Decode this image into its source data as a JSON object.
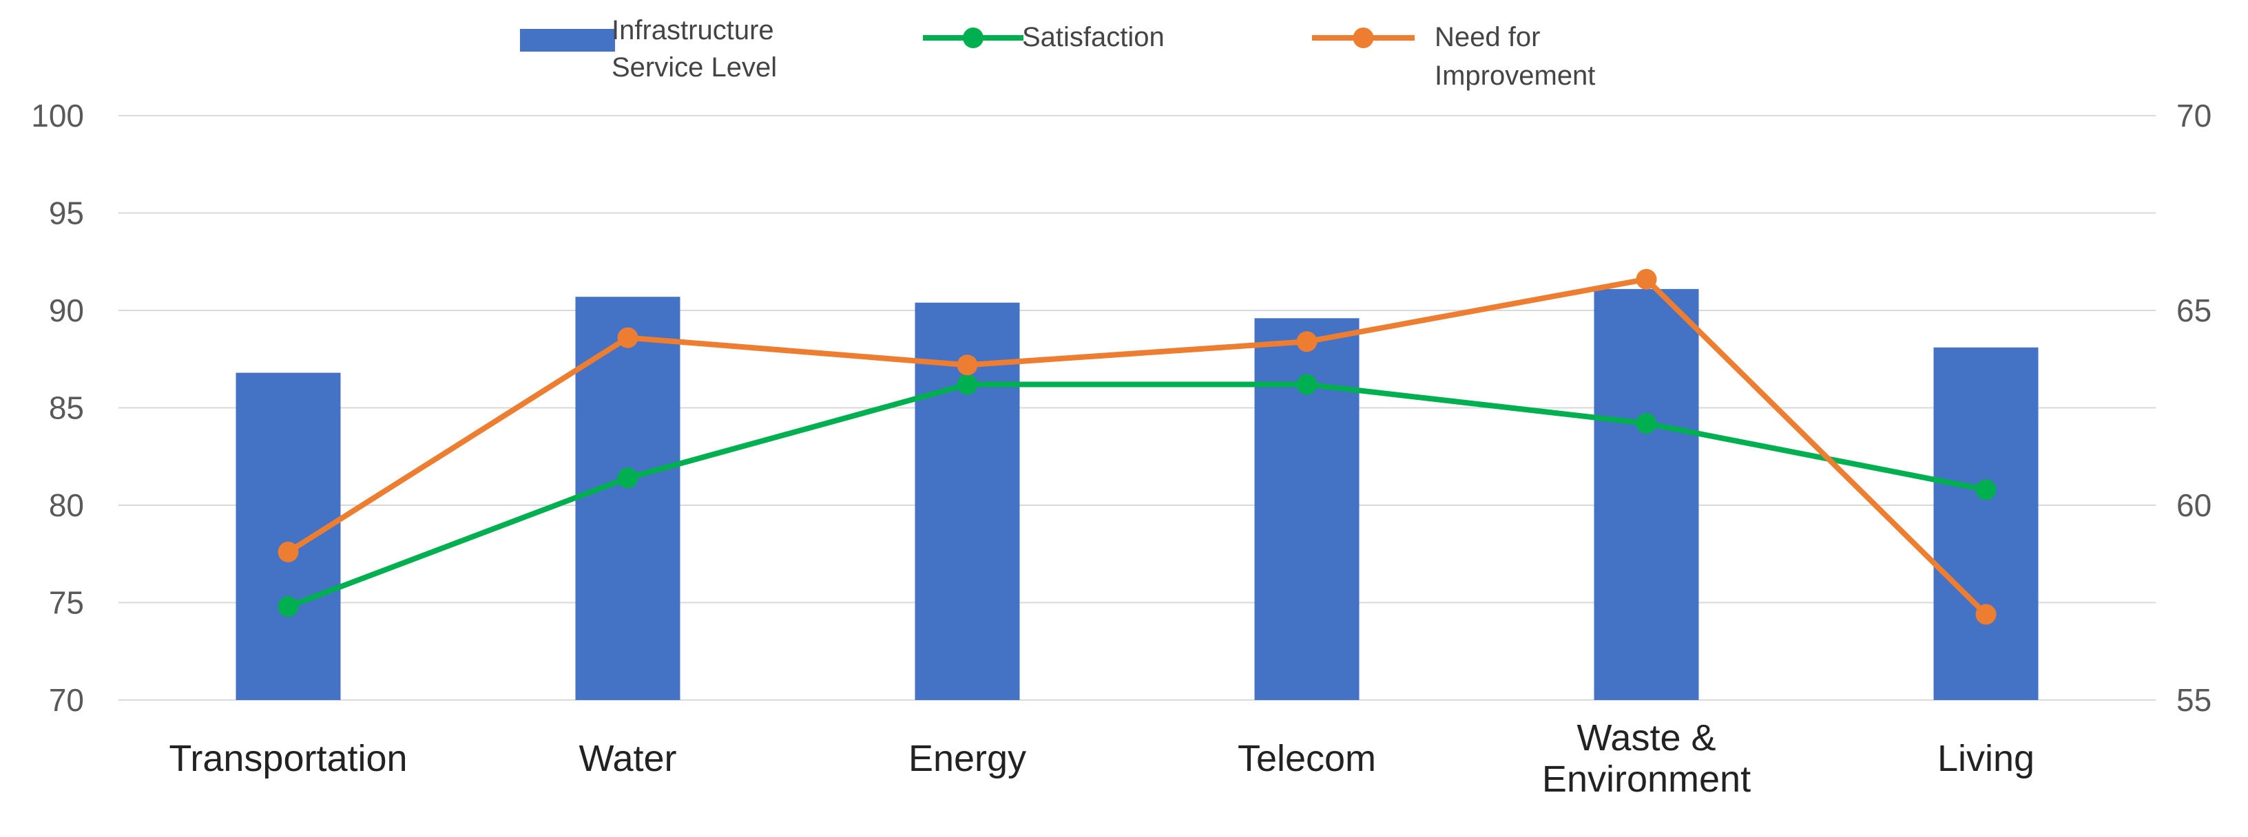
{
  "chart_data": {
    "type": "bar+line",
    "categories": [
      [
        "Transportation"
      ],
      [
        "Water"
      ],
      [
        "Energy"
      ],
      [
        "Telecom"
      ],
      [
        "Waste &",
        "Environment"
      ],
      [
        "Living"
      ]
    ],
    "bar_series": {
      "name": [
        "Infrastructure",
        "Service Level"
      ],
      "axis": "left",
      "values": [
        86.8,
        90.7,
        90.4,
        89.6,
        91.1,
        88.1
      ]
    },
    "line_series": [
      {
        "name": [
          "Satisfaction"
        ],
        "axis": "right",
        "values": [
          57.4,
          60.7,
          63.1,
          63.1,
          62.1,
          60.4
        ]
      },
      {
        "name": [
          "Need for",
          "Improvement"
        ],
        "axis": "right",
        "values": [
          58.8,
          64.3,
          63.6,
          64.2,
          65.8,
          57.2
        ]
      }
    ],
    "y_left": {
      "min": 70,
      "max": 100,
      "ticks": [
        "100",
        "95",
        "90",
        "85",
        "80",
        "75",
        "70"
      ]
    },
    "y_right": {
      "min": 55,
      "max": 70,
      "ticks": [
        "70",
        "65",
        "60",
        "55"
      ]
    },
    "grid": true,
    "legend": "top",
    "colors": {
      "bar": "#4472C4",
      "satisfaction": "#00B050",
      "need": "#ED7D31",
      "grid": "#D9D9D9"
    }
  }
}
